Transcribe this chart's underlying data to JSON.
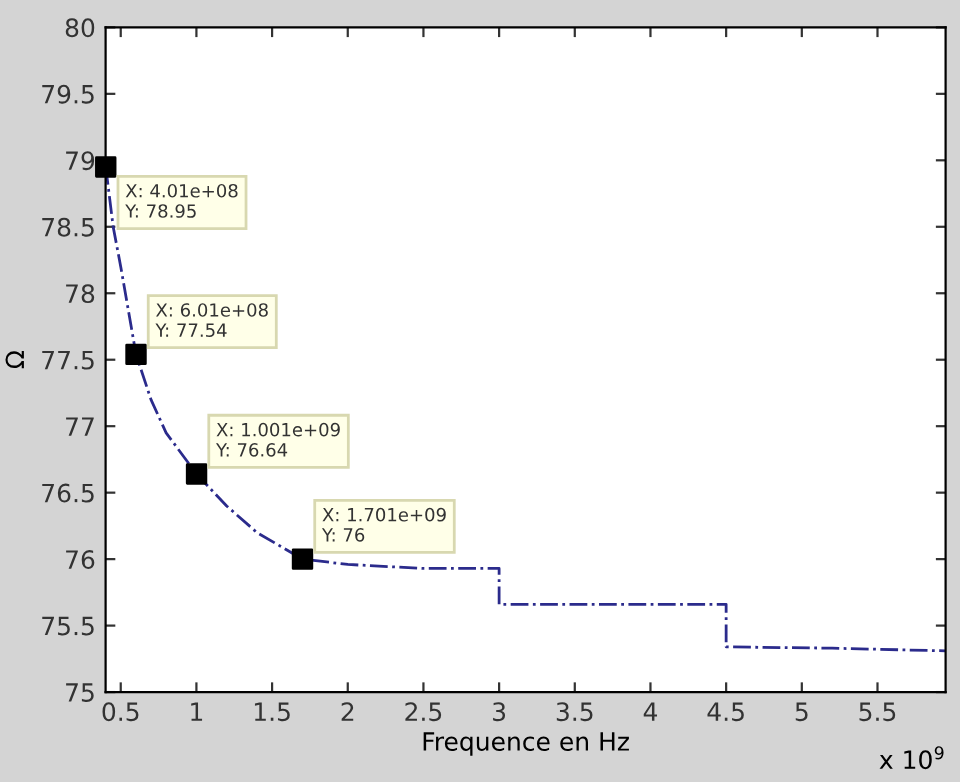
{
  "chart_data": {
    "type": "line",
    "xlabel": "Frequence en Hz",
    "ylabel": "Ω",
    "xlim": [
      0.4,
      5.95
    ],
    "ylim": [
      75,
      80
    ],
    "xticks": [
      0.5,
      1,
      1.5,
      2,
      2.5,
      3,
      3.5,
      4,
      4.5,
      5,
      5.5
    ],
    "yticks": [
      75,
      75.5,
      76,
      76.5,
      77,
      77.5,
      78,
      78.5,
      79,
      79.5,
      80
    ],
    "grid": false,
    "legend": false,
    "series": [
      {
        "color": "#2b2b8c",
        "line_style": "dashdot",
        "marker": "none",
        "x": [
          0.401,
          0.45,
          0.5,
          0.601,
          0.7,
          0.8,
          1.001,
          1.2,
          1.4,
          1.701,
          2.0,
          2.5,
          3.0,
          3.0,
          4.5,
          4.5,
          5.2,
          5.95
        ],
        "values": [
          78.95,
          78.5,
          78.2,
          77.54,
          77.2,
          76.95,
          76.64,
          76.4,
          76.2,
          76,
          75.96,
          75.93,
          75.93,
          75.66,
          75.66,
          75.34,
          75.33,
          75.31
        ]
      },
      {
        "type": "scatter",
        "color": "#000000",
        "marker": "square",
        "x": [
          0.401,
          0.601,
          1.001,
          1.701
        ],
        "values": [
          78.95,
          77.54,
          76.64,
          76
        ]
      }
    ],
    "annotations": [
      {
        "text": "X: 4.01e+08\nY: 78.95",
        "x": 0.401,
        "y": 78.95
      },
      {
        "text": "X: 6.01e+08\nY: 77.54",
        "x": 0.601,
        "y": 77.54
      },
      {
        "text": "X: 1.001e+09\nY: 76.64",
        "x": 1.001,
        "y": 76.64
      },
      {
        "text": "X: 1.701e+09\nY: 76",
        "x": 1.701,
        "y": 76
      },
      "x 10$^{9}$"
    ]
  }
}
